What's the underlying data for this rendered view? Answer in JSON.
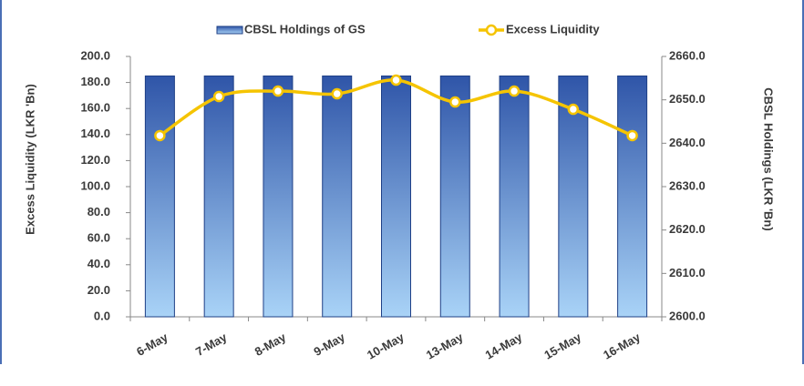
{
  "chart_data": {
    "type": "bar-line",
    "categories": [
      "6-May",
      "7-May",
      "8-May",
      "9-May",
      "10-May",
      "13-May",
      "14-May",
      "15-May",
      "16-May"
    ],
    "series": [
      {
        "name": "CBSL Holdings of GS",
        "type": "bar",
        "axis": "y2",
        "color": "#2f55a8",
        "values": [
          2655.5,
          2655.5,
          2655.5,
          2655.5,
          2655.5,
          2655.5,
          2655.5,
          2655.5,
          2655.5
        ]
      },
      {
        "name": "Excess Liquidity",
        "type": "line",
        "axis": "y",
        "color": "#f5c400",
        "values": [
          139.2,
          169.2,
          173.4,
          171.3,
          181.8,
          165.0,
          173.4,
          159.4,
          139.2
        ]
      }
    ],
    "ylabel": "Excess Liquidity (LKR 'Bn)",
    "y2label": "CBSL Holdings (LKR 'Bn)",
    "ylim": [
      0,
      200
    ],
    "yticks": [
      {
        "value": 0,
        "label": "0.0"
      },
      {
        "value": 20,
        "label": "20.0"
      },
      {
        "value": 40,
        "label": "40.0"
      },
      {
        "value": 60,
        "label": "60.0"
      },
      {
        "value": 80,
        "label": "80.0"
      },
      {
        "value": 100,
        "label": "100.0"
      },
      {
        "value": 120,
        "label": "120.0"
      },
      {
        "value": 140,
        "label": "140.0"
      },
      {
        "value": 160,
        "label": "160.0"
      },
      {
        "value": 180,
        "label": "180.0"
      },
      {
        "value": 200,
        "label": "200.0"
      }
    ],
    "y2lim": [
      2600,
      2660
    ],
    "y2ticks": [
      {
        "value": 2600,
        "label": "2600.0"
      },
      {
        "value": 2610,
        "label": "2610.0"
      },
      {
        "value": 2620,
        "label": "2620.0"
      },
      {
        "value": 2630,
        "label": "2630.0"
      },
      {
        "value": 2640,
        "label": "2640.0"
      },
      {
        "value": 2650,
        "label": "2650.0"
      },
      {
        "value": 2660,
        "label": "2660.0"
      }
    ],
    "legend": "top"
  }
}
